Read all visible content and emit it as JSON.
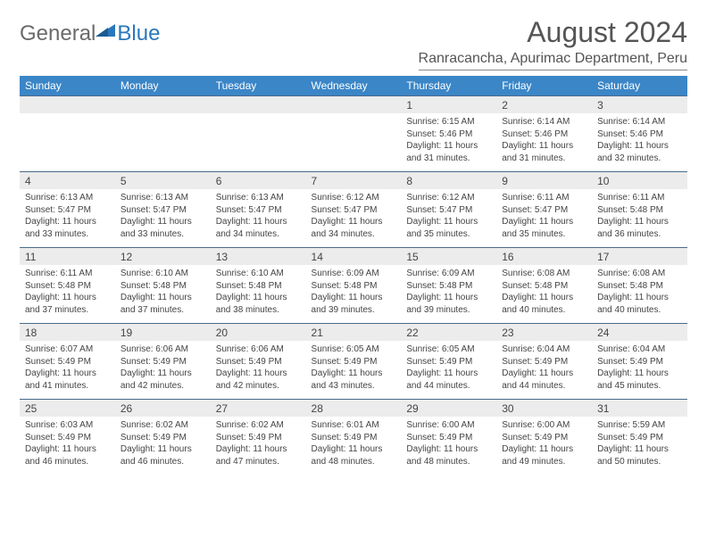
{
  "logo": {
    "text1": "General",
    "text2": "Blue"
  },
  "title": "August 2024",
  "location": "Ranracancha, Apurimac Department, Peru",
  "colors": {
    "header_bg": "#3b86c7",
    "header_text": "#ffffff",
    "daynum_bg": "#ececec",
    "border_top": "#4a6a8a",
    "logo_gray": "#6a6a6a",
    "logo_blue": "#2a77bb",
    "text": "#444444"
  },
  "day_headers": [
    "Sunday",
    "Monday",
    "Tuesday",
    "Wednesday",
    "Thursday",
    "Friday",
    "Saturday"
  ],
  "weeks": [
    {
      "nums": [
        "",
        "",
        "",
        "",
        "1",
        "2",
        "3"
      ],
      "cells": [
        null,
        null,
        null,
        null,
        {
          "sunrise": "6:15 AM",
          "sunset": "5:46 PM",
          "daylight": "11 hours and 31 minutes."
        },
        {
          "sunrise": "6:14 AM",
          "sunset": "5:46 PM",
          "daylight": "11 hours and 31 minutes."
        },
        {
          "sunrise": "6:14 AM",
          "sunset": "5:46 PM",
          "daylight": "11 hours and 32 minutes."
        }
      ]
    },
    {
      "nums": [
        "4",
        "5",
        "6",
        "7",
        "8",
        "9",
        "10"
      ],
      "cells": [
        {
          "sunrise": "6:13 AM",
          "sunset": "5:47 PM",
          "daylight": "11 hours and 33 minutes."
        },
        {
          "sunrise": "6:13 AM",
          "sunset": "5:47 PM",
          "daylight": "11 hours and 33 minutes."
        },
        {
          "sunrise": "6:13 AM",
          "sunset": "5:47 PM",
          "daylight": "11 hours and 34 minutes."
        },
        {
          "sunrise": "6:12 AM",
          "sunset": "5:47 PM",
          "daylight": "11 hours and 34 minutes."
        },
        {
          "sunrise": "6:12 AM",
          "sunset": "5:47 PM",
          "daylight": "11 hours and 35 minutes."
        },
        {
          "sunrise": "6:11 AM",
          "sunset": "5:47 PM",
          "daylight": "11 hours and 35 minutes."
        },
        {
          "sunrise": "6:11 AM",
          "sunset": "5:48 PM",
          "daylight": "11 hours and 36 minutes."
        }
      ]
    },
    {
      "nums": [
        "11",
        "12",
        "13",
        "14",
        "15",
        "16",
        "17"
      ],
      "cells": [
        {
          "sunrise": "6:11 AM",
          "sunset": "5:48 PM",
          "daylight": "11 hours and 37 minutes."
        },
        {
          "sunrise": "6:10 AM",
          "sunset": "5:48 PM",
          "daylight": "11 hours and 37 minutes."
        },
        {
          "sunrise": "6:10 AM",
          "sunset": "5:48 PM",
          "daylight": "11 hours and 38 minutes."
        },
        {
          "sunrise": "6:09 AM",
          "sunset": "5:48 PM",
          "daylight": "11 hours and 39 minutes."
        },
        {
          "sunrise": "6:09 AM",
          "sunset": "5:48 PM",
          "daylight": "11 hours and 39 minutes."
        },
        {
          "sunrise": "6:08 AM",
          "sunset": "5:48 PM",
          "daylight": "11 hours and 40 minutes."
        },
        {
          "sunrise": "6:08 AM",
          "sunset": "5:48 PM",
          "daylight": "11 hours and 40 minutes."
        }
      ]
    },
    {
      "nums": [
        "18",
        "19",
        "20",
        "21",
        "22",
        "23",
        "24"
      ],
      "cells": [
        {
          "sunrise": "6:07 AM",
          "sunset": "5:49 PM",
          "daylight": "11 hours and 41 minutes."
        },
        {
          "sunrise": "6:06 AM",
          "sunset": "5:49 PM",
          "daylight": "11 hours and 42 minutes."
        },
        {
          "sunrise": "6:06 AM",
          "sunset": "5:49 PM",
          "daylight": "11 hours and 42 minutes."
        },
        {
          "sunrise": "6:05 AM",
          "sunset": "5:49 PM",
          "daylight": "11 hours and 43 minutes."
        },
        {
          "sunrise": "6:05 AM",
          "sunset": "5:49 PM",
          "daylight": "11 hours and 44 minutes."
        },
        {
          "sunrise": "6:04 AM",
          "sunset": "5:49 PM",
          "daylight": "11 hours and 44 minutes."
        },
        {
          "sunrise": "6:04 AM",
          "sunset": "5:49 PM",
          "daylight": "11 hours and 45 minutes."
        }
      ]
    },
    {
      "nums": [
        "25",
        "26",
        "27",
        "28",
        "29",
        "30",
        "31"
      ],
      "cells": [
        {
          "sunrise": "6:03 AM",
          "sunset": "5:49 PM",
          "daylight": "11 hours and 46 minutes."
        },
        {
          "sunrise": "6:02 AM",
          "sunset": "5:49 PM",
          "daylight": "11 hours and 46 minutes."
        },
        {
          "sunrise": "6:02 AM",
          "sunset": "5:49 PM",
          "daylight": "11 hours and 47 minutes."
        },
        {
          "sunrise": "6:01 AM",
          "sunset": "5:49 PM",
          "daylight": "11 hours and 48 minutes."
        },
        {
          "sunrise": "6:00 AM",
          "sunset": "5:49 PM",
          "daylight": "11 hours and 48 minutes."
        },
        {
          "sunrise": "6:00 AM",
          "sunset": "5:49 PM",
          "daylight": "11 hours and 49 minutes."
        },
        {
          "sunrise": "5:59 AM",
          "sunset": "5:49 PM",
          "daylight": "11 hours and 50 minutes."
        }
      ]
    }
  ]
}
